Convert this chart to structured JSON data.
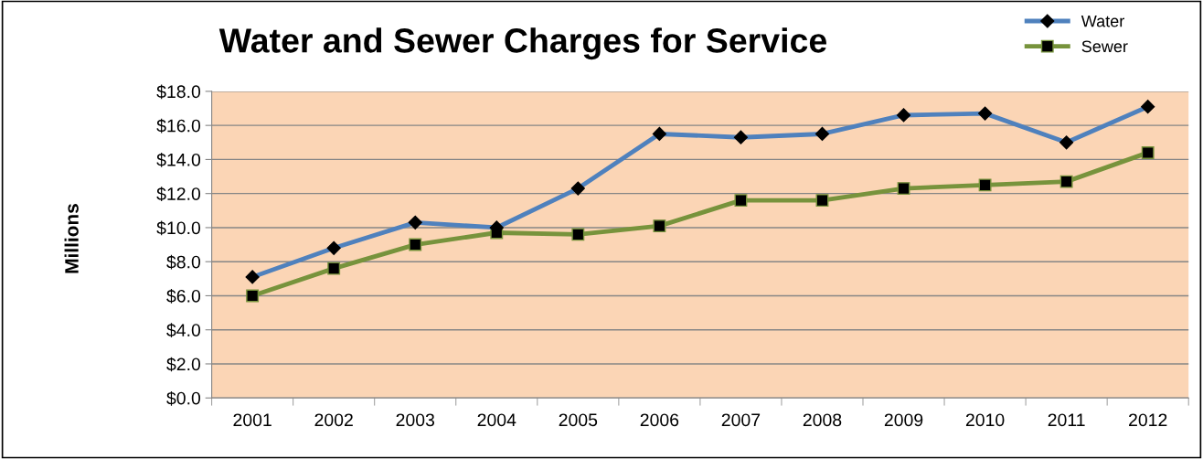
{
  "chart_data": {
    "type": "line",
    "title": "Water and Sewer Charges for Service",
    "ylabel": "Millions",
    "categories": [
      "2001",
      "2002",
      "2003",
      "2004",
      "2005",
      "2006",
      "2007",
      "2008",
      "2009",
      "2010",
      "2011",
      "2012"
    ],
    "series": [
      {
        "name": "Water",
        "color": "#4f81bd",
        "marker": "diamond",
        "values": [
          7.1,
          8.8,
          10.3,
          10.0,
          12.3,
          15.5,
          15.3,
          15.5,
          16.6,
          16.7,
          15.0,
          17.1
        ]
      },
      {
        "name": "Sewer",
        "color": "#77933c",
        "marker": "square",
        "values": [
          6.0,
          7.6,
          9.0,
          9.7,
          9.6,
          10.1,
          11.6,
          11.6,
          12.3,
          12.5,
          12.7,
          14.4
        ]
      }
    ],
    "ylim": [
      0,
      18
    ],
    "yticks": [
      {
        "value": 0,
        "label": "$0.0"
      },
      {
        "value": 2,
        "label": "$2.0"
      },
      {
        "value": 4,
        "label": "$4.0"
      },
      {
        "value": 6,
        "label": "$6.0"
      },
      {
        "value": 8,
        "label": "$8.0"
      },
      {
        "value": 10,
        "label": "$10.0"
      },
      {
        "value": 12,
        "label": "$12.0"
      },
      {
        "value": 14,
        "label": "$14.0"
      },
      {
        "value": 16,
        "label": "$16.0"
      },
      {
        "value": 18,
        "label": "$18.0"
      }
    ],
    "grid": "y",
    "legend": "top right",
    "line_style": "solid"
  }
}
